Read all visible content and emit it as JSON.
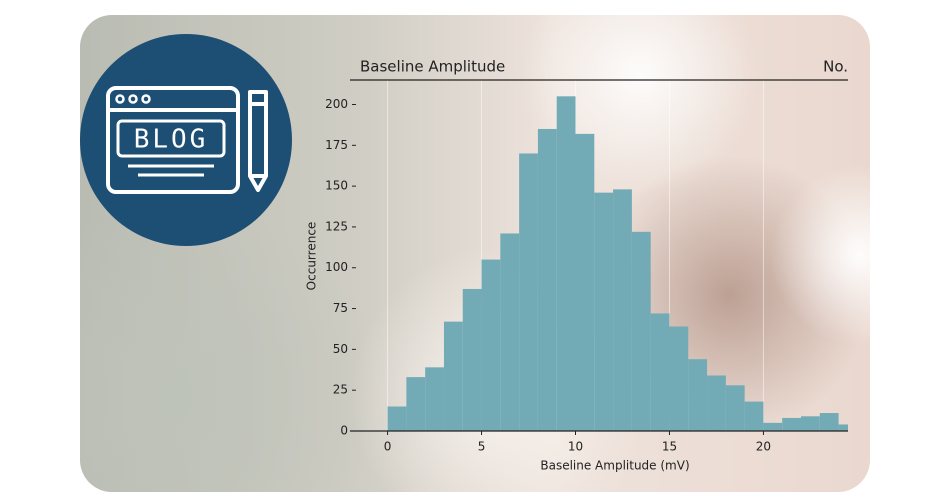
{
  "badge_text": "BLOG",
  "chart_data": {
    "type": "histogram",
    "title": "Baseline Amplitude",
    "title_right": "No.",
    "xlabel": "Baseline Amplitude (mV)",
    "ylabel": "Occurrence",
    "bins": [
      0,
      1,
      2,
      3,
      4,
      5,
      6,
      7,
      8,
      9,
      10,
      11,
      12,
      13,
      14,
      15,
      16,
      17,
      18,
      19,
      20,
      21,
      22,
      23,
      24,
      25
    ],
    "values": [
      15,
      33,
      39,
      67,
      87,
      105,
      121,
      170,
      185,
      205,
      182,
      146,
      148,
      122,
      72,
      64,
      44,
      34,
      28,
      18,
      5,
      8,
      9,
      11,
      4
    ],
    "color": "#72aab5",
    "xlim": [
      -2,
      24.5
    ],
    "xticks": [
      0,
      5,
      10,
      15,
      20
    ],
    "ylim": [
      0,
      215
    ],
    "yticks": [
      0,
      25,
      50,
      75,
      100,
      125,
      150,
      175,
      200
    ],
    "grid": true
  }
}
